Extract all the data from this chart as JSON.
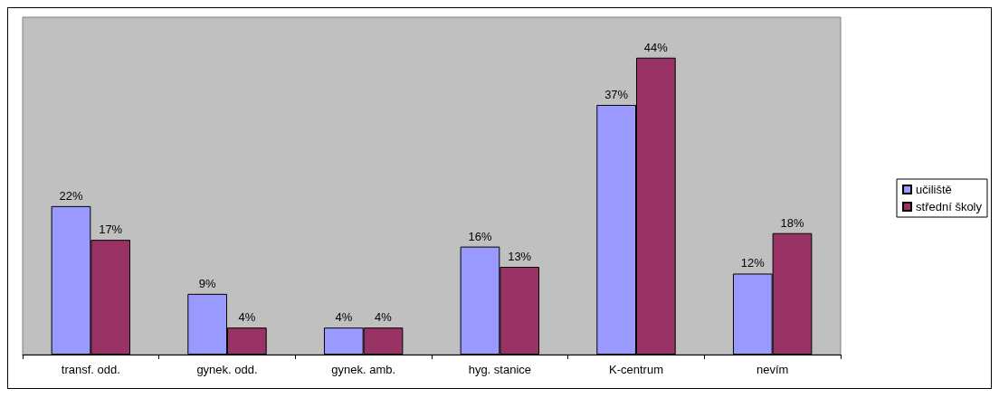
{
  "chart_data": {
    "type": "bar",
    "categories": [
      "transf. odd.",
      "gynek. odd.",
      "gynek. amb.",
      "hyg. stanice",
      "K-centrum",
      "nevím"
    ],
    "series": [
      {
        "name": "učiliště",
        "color": "#9999ff",
        "values": [
          22,
          9,
          4,
          16,
          37,
          12
        ],
        "value_labels": [
          "22%",
          "9%",
          "4%",
          "16%",
          "37%",
          "12%"
        ]
      },
      {
        "name": "střední školy",
        "color": "#993366",
        "values": [
          17,
          4,
          4,
          13,
          44,
          18
        ],
        "value_labels": [
          "17%",
          "4%",
          "4%",
          "13%",
          "44%",
          "18%"
        ]
      }
    ],
    "legend": "right",
    "grid": false
  }
}
